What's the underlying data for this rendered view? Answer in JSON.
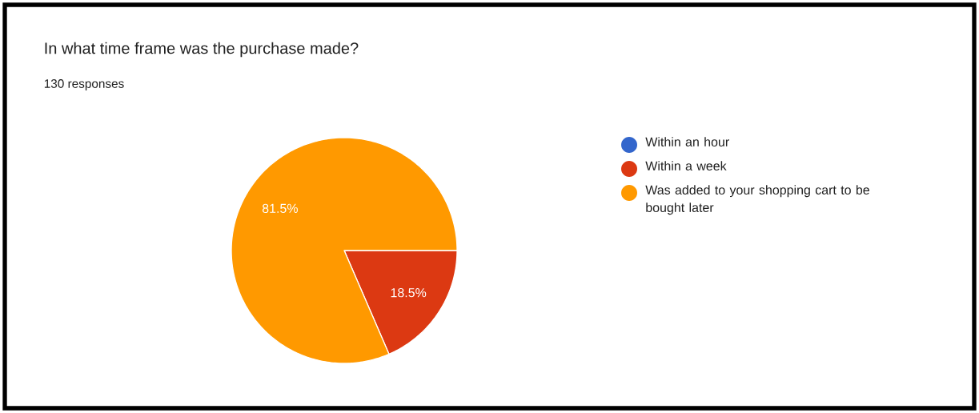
{
  "chart_data": {
    "type": "pie",
    "title": "In what time frame was the purchase made?",
    "subtitle": "130 responses",
    "categories": [
      "Within an hour",
      "Within a week",
      "Was added to your shopping cart to be bought later"
    ],
    "values": [
      0,
      18.5,
      81.5
    ],
    "colors": [
      "#3366cc",
      "#dc3912",
      "#ff9900"
    ],
    "value_labels": [
      null,
      "18.5%",
      "81.5%"
    ],
    "legend": "right"
  }
}
